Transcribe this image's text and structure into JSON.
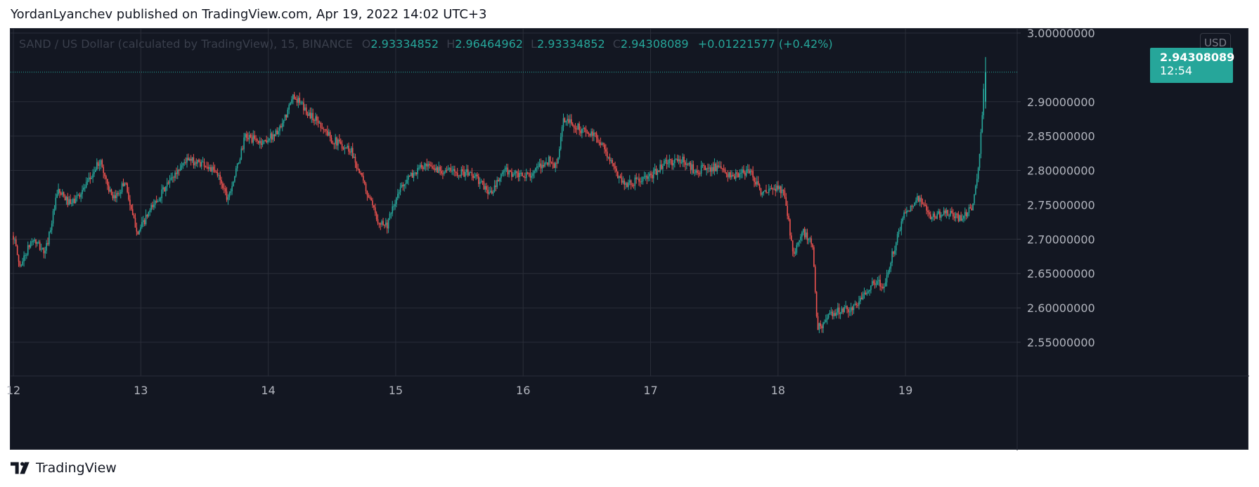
{
  "header": {
    "text": "YordanLyanchev published on TradingView.com, Apr 19, 2022 14:02 UTC+3"
  },
  "legend": {
    "symbol": "SAND / US Dollar (calculated by TradingView), 15, BINANCE",
    "o_label": "O",
    "o_value": "2.93334852",
    "h_label": "H",
    "h_value": "2.96464962",
    "l_label": "L",
    "l_value": "2.93334852",
    "c_label": "C",
    "c_value": "2.94308089",
    "change": "+0.01221577 (+0.42%)"
  },
  "currency": "USD",
  "last_price": {
    "value": "2.94308089",
    "countdown": "12:54"
  },
  "footer": {
    "brand": "TradingView"
  },
  "colors": {
    "up": "#26a69a",
    "down": "#ef5350",
    "background": "#131722",
    "grid": "#2a2e39"
  },
  "chart_data": {
    "type": "candlestick",
    "symbol": "SAND/USD",
    "interval": "15",
    "ylim": [
      2.505,
      3.0
    ],
    "y_ticks": [
      "3.00000000",
      "2.90000000",
      "2.85000000",
      "2.80000000",
      "2.75000000",
      "2.70000000",
      "2.65000000",
      "2.60000000",
      "2.55000000"
    ],
    "x_ticks": [
      "12",
      "13",
      "14",
      "15",
      "16",
      "17",
      "18",
      "19"
    ],
    "xlim": [
      12.0,
      19.84
    ],
    "grid": true,
    "last_close": 2.94308089,
    "price_path": [
      [
        12.0,
        2.705
      ],
      [
        12.05,
        2.66
      ],
      [
        12.15,
        2.7
      ],
      [
        12.25,
        2.68
      ],
      [
        12.35,
        2.77
      ],
      [
        12.45,
        2.75
      ],
      [
        12.58,
        2.78
      ],
      [
        12.68,
        2.815
      ],
      [
        12.78,
        2.755
      ],
      [
        12.88,
        2.785
      ],
      [
        12.93,
        2.735
      ],
      [
        12.98,
        2.71
      ],
      [
        13.1,
        2.75
      ],
      [
        13.25,
        2.79
      ],
      [
        13.35,
        2.815
      ],
      [
        13.5,
        2.81
      ],
      [
        13.62,
        2.79
      ],
      [
        13.68,
        2.76
      ],
      [
        13.75,
        2.8
      ],
      [
        13.82,
        2.85
      ],
      [
        13.95,
        2.84
      ],
      [
        14.1,
        2.86
      ],
      [
        14.2,
        2.91
      ],
      [
        14.3,
        2.885
      ],
      [
        14.4,
        2.87
      ],
      [
        14.5,
        2.845
      ],
      [
        14.65,
        2.83
      ],
      [
        14.75,
        2.78
      ],
      [
        14.85,
        2.73
      ],
      [
        14.93,
        2.72
      ],
      [
        15.05,
        2.78
      ],
      [
        15.2,
        2.805
      ],
      [
        15.4,
        2.8
      ],
      [
        15.6,
        2.795
      ],
      [
        15.75,
        2.765
      ],
      [
        15.85,
        2.8
      ],
      [
        16.0,
        2.79
      ],
      [
        16.1,
        2.8
      ],
      [
        16.2,
        2.815
      ],
      [
        16.26,
        2.805
      ],
      [
        16.32,
        2.875
      ],
      [
        16.45,
        2.86
      ],
      [
        16.6,
        2.845
      ],
      [
        16.72,
        2.8
      ],
      [
        16.8,
        2.78
      ],
      [
        17.0,
        2.79
      ],
      [
        17.1,
        2.81
      ],
      [
        17.25,
        2.815
      ],
      [
        17.35,
        2.8
      ],
      [
        17.5,
        2.805
      ],
      [
        17.65,
        2.79
      ],
      [
        17.78,
        2.8
      ],
      [
        17.88,
        2.765
      ],
      [
        18.0,
        2.775
      ],
      [
        18.05,
        2.765
      ],
      [
        18.12,
        2.68
      ],
      [
        18.2,
        2.71
      ],
      [
        18.27,
        2.69
      ],
      [
        18.31,
        2.57
      ],
      [
        18.45,
        2.595
      ],
      [
        18.6,
        2.6
      ],
      [
        18.75,
        2.64
      ],
      [
        18.83,
        2.63
      ],
      [
        18.9,
        2.68
      ],
      [
        19.0,
        2.74
      ],
      [
        19.1,
        2.76
      ],
      [
        19.2,
        2.73
      ],
      [
        19.3,
        2.74
      ],
      [
        19.42,
        2.73
      ],
      [
        19.52,
        2.745
      ],
      [
        19.57,
        2.8
      ],
      [
        19.6,
        2.87
      ],
      [
        19.62,
        2.943
      ]
    ]
  }
}
